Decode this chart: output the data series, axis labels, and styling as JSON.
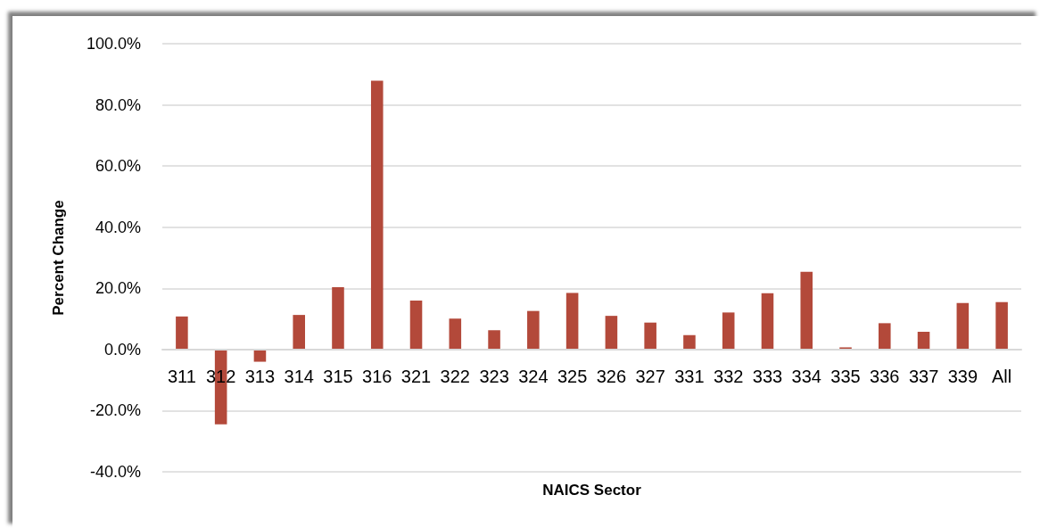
{
  "chart_data": {
    "type": "bar",
    "xlabel": "NAICS Sector",
    "ylabel": "Percent Change",
    "categories": [
      "311",
      "312",
      "313",
      "314",
      "315",
      "316",
      "321",
      "322",
      "323",
      "324",
      "325",
      "326",
      "327",
      "331",
      "332",
      "333",
      "334",
      "335",
      "336",
      "337",
      "339",
      "All"
    ],
    "values": [
      10.8,
      -24.5,
      -4.0,
      11.3,
      20.4,
      87.9,
      16.0,
      10.1,
      6.3,
      12.6,
      18.5,
      11.0,
      8.8,
      4.7,
      12.1,
      18.4,
      25.4,
      0.7,
      8.6,
      5.8,
      15.2,
      15.5
    ],
    "color": "#b3493a",
    "ylim": [
      -40,
      100
    ],
    "yticks": [
      {
        "value": -40,
        "label": "-40.0%"
      },
      {
        "value": -20,
        "label": "-20.0%"
      },
      {
        "value": 0,
        "label": "0.0%"
      },
      {
        "value": 20,
        "label": "20.0%"
      },
      {
        "value": 40,
        "label": "40.0%"
      },
      {
        "value": 60,
        "label": "60.0%"
      },
      {
        "value": 80,
        "label": "80.0%"
      },
      {
        "value": 100,
        "label": "100.0%"
      }
    ],
    "grid": "y"
  }
}
